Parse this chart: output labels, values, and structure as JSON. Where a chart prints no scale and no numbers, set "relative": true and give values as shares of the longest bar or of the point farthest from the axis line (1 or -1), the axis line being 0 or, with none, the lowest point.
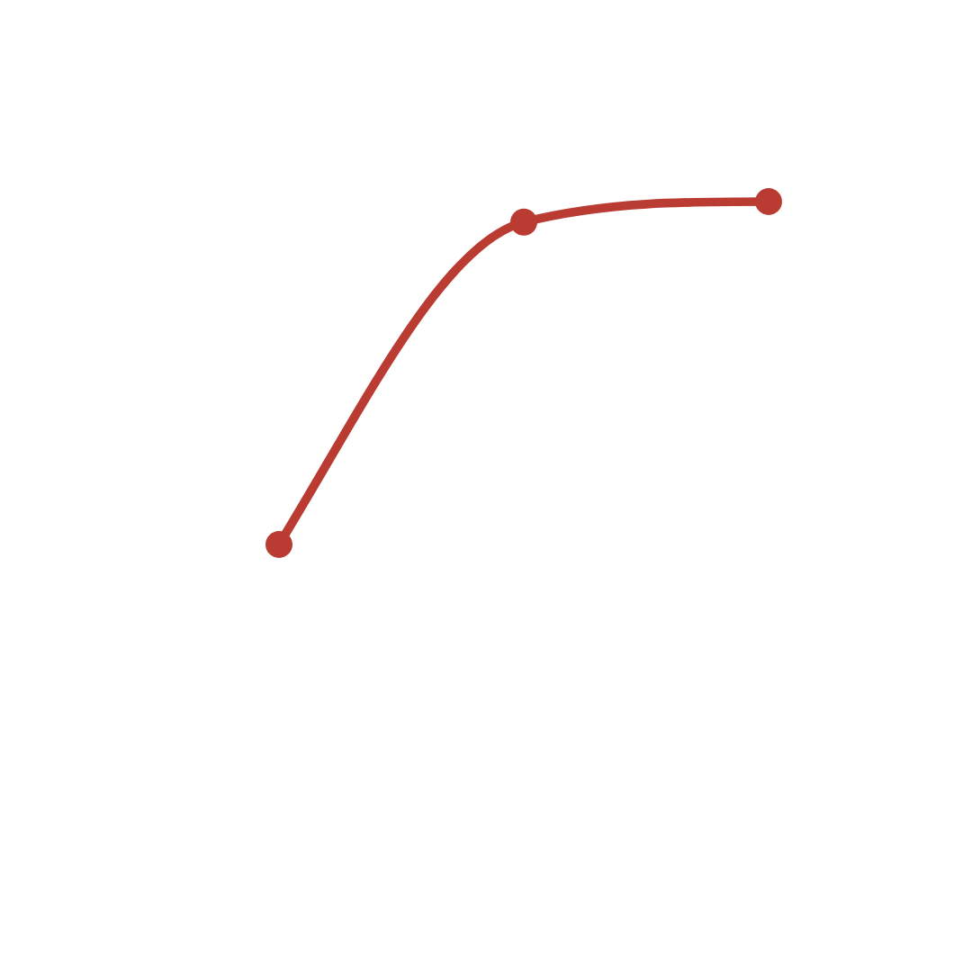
{
  "chart_data": {
    "type": "line",
    "relative": true,
    "categories": [
      null,
      null,
      null
    ],
    "series": [
      {
        "color": "#b93b32",
        "values": [
          0,
          0.94,
          1
        ]
      }
    ],
    "marker": "circle",
    "line_style": "solid"
  }
}
